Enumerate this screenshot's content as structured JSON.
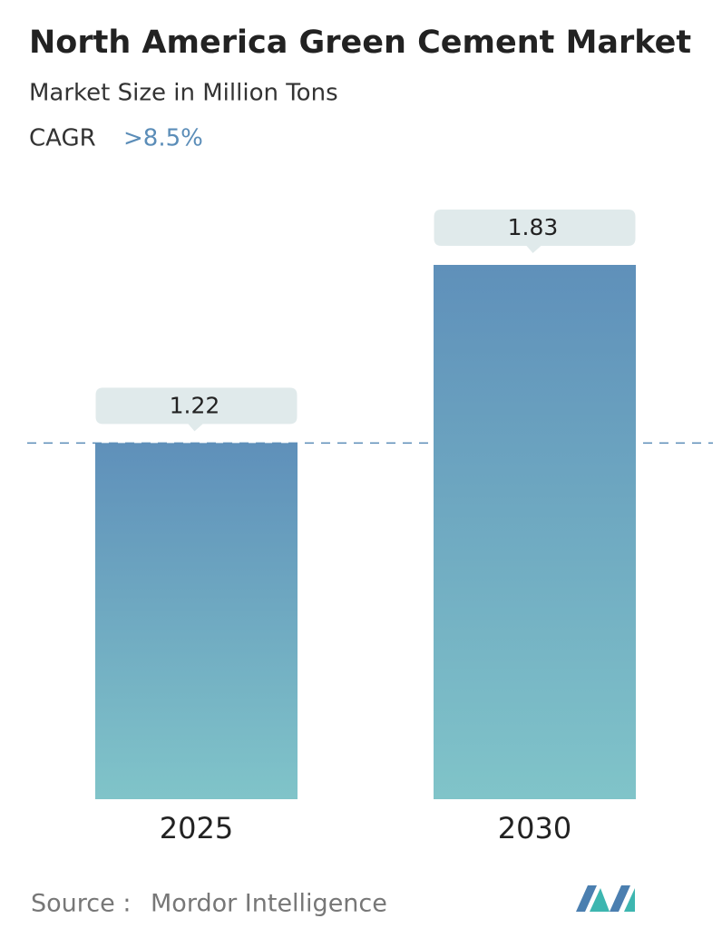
{
  "chart_data": {
    "type": "bar",
    "title": "North America Green Cement Market",
    "subtitle": "Market Size in Million Tons",
    "cagr_label": "CAGR",
    "cagr_value": ">8.5%",
    "categories": [
      "2025",
      "2030"
    ],
    "values": [
      1.22,
      1.83
    ],
    "color_top": "#5f90ba",
    "color_bottom": "#80c4c9",
    "source_label": "Source :",
    "source": "Mordor Intelligence"
  }
}
